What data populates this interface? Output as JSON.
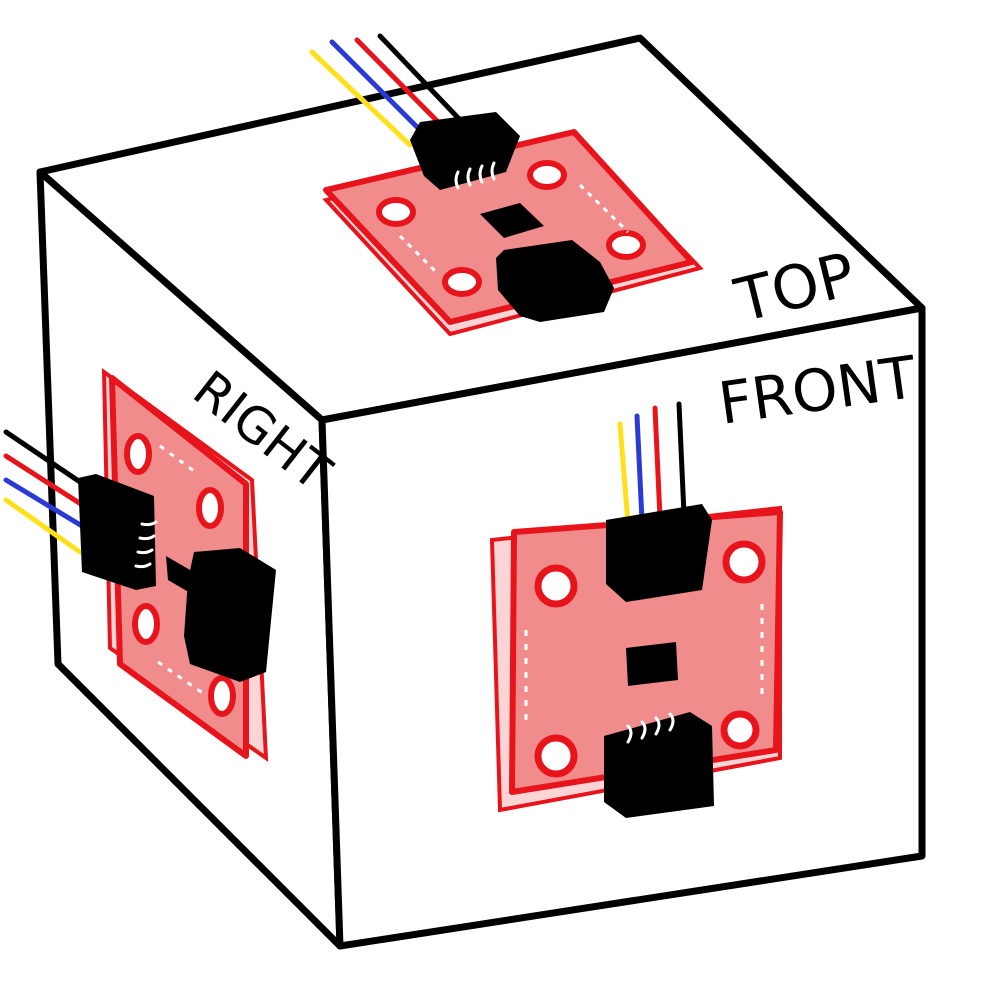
{
  "labels": {
    "top": "TOP",
    "front": "FRONT",
    "right": "RIGHT"
  },
  "colors": {
    "outline": "#000000",
    "face": "#ffffff",
    "board_border": "#e8141c",
    "board_fill": "#f08c8c",
    "board_edge": "#fbd5d5",
    "connector": "#000000",
    "pin": "#ffffff",
    "wire_yellow": "#ffe01a",
    "wire_blue": "#2b3ad4",
    "wire_red": "#e8141c",
    "wire_black": "#000000"
  },
  "sensors": [
    {
      "face": "top",
      "wires": [
        "yellow",
        "blue",
        "red",
        "black"
      ]
    },
    {
      "face": "front",
      "wires": [
        "yellow",
        "blue",
        "red",
        "black"
      ]
    },
    {
      "face": "right",
      "wires": [
        "yellow",
        "blue",
        "red",
        "black"
      ]
    }
  ]
}
